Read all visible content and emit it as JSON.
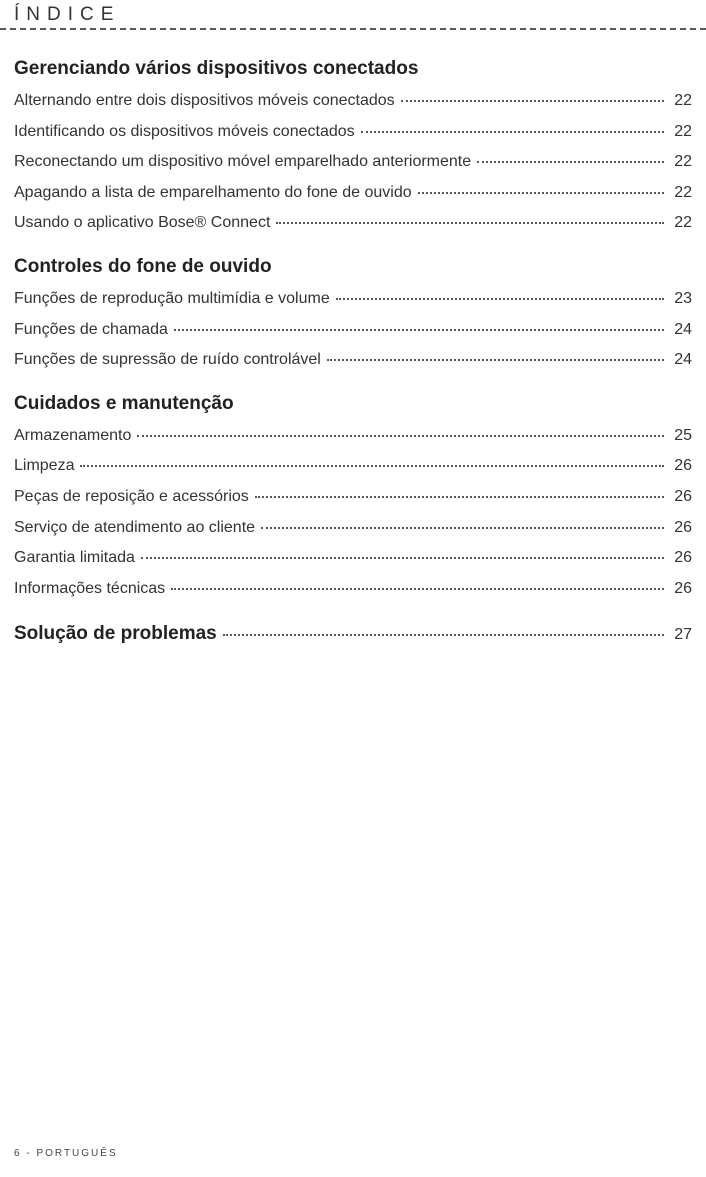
{
  "header": {
    "title": "ÍNDICE"
  },
  "sections": [
    {
      "heading": "Gerenciando vários dispositivos conectados",
      "entries": [
        {
          "label": "Alternando entre  dois  dispositivos móveis conectados",
          "page": "22"
        },
        {
          "label": "Identificando os dispositivos móveis conectados",
          "page": "22"
        },
        {
          "label": "Reconectando um  dispositivo móvel emparelhado anteriormente",
          "page": "22"
        },
        {
          "label": "Apagando a lista  de emparelhamento do  fone de ouvido",
          "page": "22"
        },
        {
          "label": "Usando  o aplicativo Bose® Connect",
          "page": "22"
        }
      ]
    },
    {
      "heading": "Controles  do fone  de ouvido",
      "entries": [
        {
          "label": "Funções de reprodução multimídia e volume",
          "page": "23"
        },
        {
          "label": "Funções de chamada",
          "page": "24"
        },
        {
          "label": "Funções de supressão de ruído  controlável",
          "page": "24"
        }
      ]
    },
    {
      "heading": "Cuidados  e manutenção",
      "entries": [
        {
          "label": "Armazenamento",
          "page": "25"
        },
        {
          "label": "Limpeza",
          "page": "26"
        },
        {
          "label": "Peças de reposição e acessórios",
          "page": "26"
        },
        {
          "label": "Serviço de atendimento ao cliente",
          "page": "26"
        },
        {
          "label": "Garantia limitada",
          "page": "26"
        },
        {
          "label": "Informações técnicas",
          "page": "26"
        }
      ]
    }
  ],
  "finalEntry": {
    "heading": "Solução  de problemas",
    "page": "27"
  },
  "footer": {
    "text": "6 - PORTUGUÊS"
  }
}
